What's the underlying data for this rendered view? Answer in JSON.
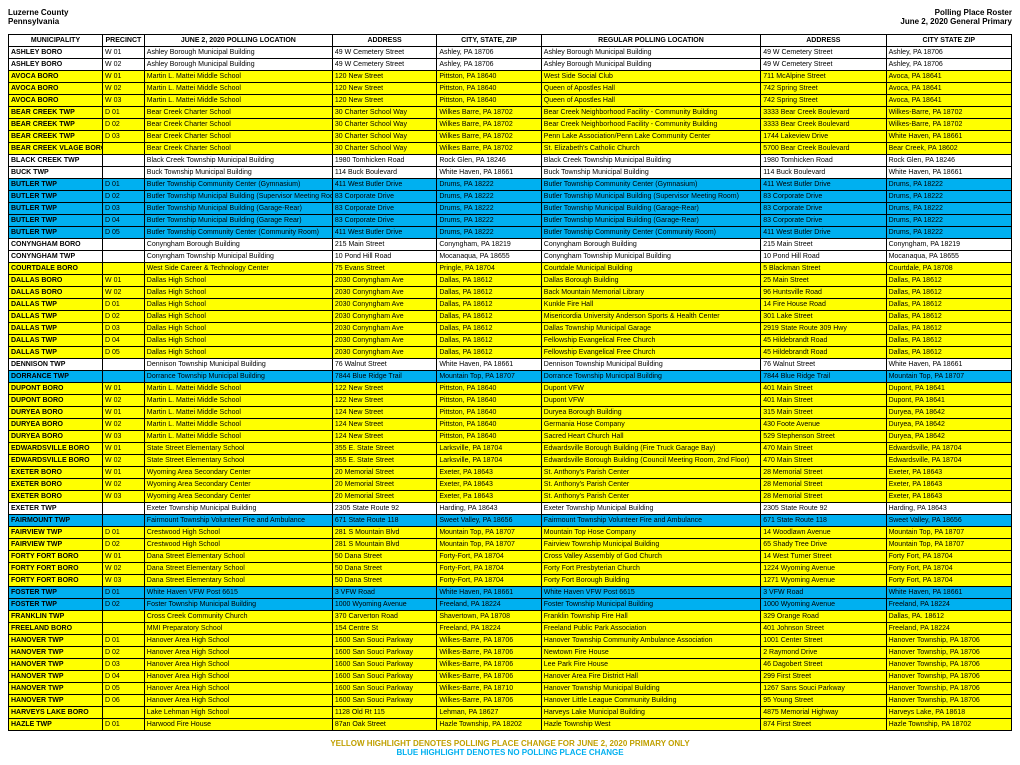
{
  "header": {
    "left_line1": "Luzerne County",
    "left_line2": "Pennsylvania",
    "right_line1": "Polling Place Roster",
    "right_line2": "June 2, 2020 General Primary"
  },
  "columns": [
    "MUNICIPALITY",
    "PRECINCT",
    "JUNE 2, 2020 POLLING LOCATION",
    "ADDRESS",
    "CITY, STATE, ZIP",
    "REGULAR POLLING LOCATION",
    "ADDRESS",
    "CITY STATE ZIP"
  ],
  "rows": [
    {
      "hl": "",
      "c": [
        "ASHLEY BORO",
        "W 01",
        "Ashley Borough Municipal Building",
        "49 W Cemetery Street",
        "Ashley, PA 18706",
        "Ashley Borough Municipal Building",
        "49 W Cemetery Street",
        "Ashley, PA 18706"
      ]
    },
    {
      "hl": "",
      "c": [
        "ASHLEY BORO",
        "W 02",
        "Ashley Borough Municipal Building",
        "49 W Cemetery Street",
        "Ashley, PA 18706",
        "Ashley Borough Municipal Building",
        "49 W Cemetery Street",
        "Ashley, PA 18706"
      ]
    },
    {
      "hl": "yellow",
      "c": [
        "AVOCA BORO",
        "W 01",
        "Martin L. Mattei Middle School",
        "120 New Street",
        "Pittston, PA 18640",
        "West Side Social Club",
        "711 McAlpine Street",
        "Avoca, PA 18641"
      ]
    },
    {
      "hl": "yellow",
      "c": [
        "AVOCA BORO",
        "W 02",
        "Martin L. Mattei Middle School",
        "120 New Street",
        "Pittston, PA 18640",
        "Queen of Apostles Hall",
        "742 Spring Street",
        "Avoca, PA 18641"
      ]
    },
    {
      "hl": "yellow",
      "c": [
        "AVOCA BORO",
        "W 03",
        "Martin L. Mattei Middle School",
        "120 New Street",
        "Pittston, PA 18640",
        "Queen of Apostles Hall",
        "742 Spring Street",
        "Avoca, PA 18641"
      ]
    },
    {
      "hl": "yellow",
      "c": [
        "BEAR CREEK TWP",
        "D 01",
        "Bear Creek Charter School",
        "30 Charter School Way",
        "Wilkes Barre, PA 18702",
        "Bear Creek Neighborhood Facility - Community Building",
        "3333 Bear Creek Boulevard",
        "Wilkes-Barre, PA 18702"
      ]
    },
    {
      "hl": "yellow",
      "c": [
        "BEAR CREEK TWP",
        "D 02",
        "Bear Creek Charter School",
        "30 Charter School Way",
        "Wilkes Barre, PA 18702",
        "Bear Creek Neighborhood Facility - Community Building",
        "3333 Bear Creek Boulevard",
        "Wilkes-Barre, PA 18702"
      ]
    },
    {
      "hl": "yellow",
      "c": [
        "BEAR CREEK TWP",
        "D 03",
        "Bear Creek Charter School",
        "30 Charter School Way",
        "Wilkes Barre, PA 18702",
        "Penn Lake Association/Penn Lake Community Center",
        "1744 Lakeview Drive",
        "White Haven, PA 18661"
      ]
    },
    {
      "hl": "yellow",
      "c": [
        "BEAR CREEK VLAGE BORO",
        "",
        "Bear Creek Charter School",
        "30 Charter School Way",
        "Wilkes Barre, PA 18702",
        "St. Elizabeth's Catholic Church",
        "5700 Bear Creek Boulevard",
        "Bear Creek, PA 18602"
      ]
    },
    {
      "hl": "",
      "c": [
        "BLACK CREEK TWP",
        "",
        "Black Creek Township Municipal Building",
        "1980 Tomhicken Road",
        "Rock Glen, PA  18246",
        "Black Creek Township Municipal Building",
        "1980 Tomhicken Road",
        "Rock Glen, PA  18246"
      ]
    },
    {
      "hl": "",
      "c": [
        "BUCK TWP",
        "",
        "Buck Township Municipal Building",
        "114 Buck Boulevard",
        "White Haven, PA 18661",
        "Buck Township Municipal Building",
        "114 Buck Boulevard",
        "White Haven, PA 18661"
      ]
    },
    {
      "hl": "blue",
      "c": [
        "BUTLER TWP",
        "D 01",
        "Butler Township Community Center (Gymnasium)",
        "411 West Butler Drive",
        "Drums, PA 18222",
        "Butler Township Community Center (Gymnasium)",
        "411 West Butler Drive",
        "Drums, PA 18222"
      ]
    },
    {
      "hl": "blue",
      "c": [
        "BUTLER TWP",
        "D 02",
        "Butler Township Municipal Building (Supervisor Meeting Room)",
        "83 Corporate Drive",
        "Drums, PA 18222",
        "Butler Township Municipal Building (Supervisor Meeting Room)",
        "83 Corporate Drive",
        "Drums, PA 18222"
      ]
    },
    {
      "hl": "blue",
      "c": [
        "BUTLER TWP",
        "D 03",
        "Butler Township Municipal Building (Garage-Rear)",
        "83 Corporate Drive",
        "Drums, PA 18222",
        "Butler Township Municipal Building (Garage-Rear)",
        "83 Corporate Drive",
        "Drums, PA 18222"
      ]
    },
    {
      "hl": "blue",
      "c": [
        "BUTLER TWP",
        "D 04",
        "Butler Township Municipal Building (Garage Rear)",
        "83 Corporate Drive",
        "Drums, PA 18222",
        "Butler Township Municipal Building (Garage-Rear)",
        "83 Corporate Drive",
        "Drums, PA 18222"
      ]
    },
    {
      "hl": "blue",
      "c": [
        "BUTLER TWP",
        "D 05",
        "Butler Township Community Center (Community Room)",
        "411 West Butler Drive",
        "Drums, PA 18222",
        "Butler Township Community Center (Community Room)",
        "411 West Butler Drive",
        "Drums, PA 18222"
      ]
    },
    {
      "hl": "",
      "c": [
        "CONYNGHAM BORO",
        "",
        "Conyngham Borough Building",
        "215 Main Street",
        "Conyngham, PA 18219",
        "Conyngham Borough Building",
        "215 Main Street",
        "Conyngham, PA 18219"
      ]
    },
    {
      "hl": "",
      "c": [
        "CONYNGHAM TWP",
        "",
        "Conyngham Township Municipal Building",
        "10 Pond Hill Road",
        "Mocanaqua, PA 18655",
        "Conyngham Township Municipal Building",
        "10 Pond Hill Road",
        "Mocanaqua, PA 18655"
      ]
    },
    {
      "hl": "yellow",
      "c": [
        "COURTDALE BORO",
        "",
        "West Side Career & Technology Center",
        "75 Evans Street",
        "Pringle, PA 18704",
        "Courtdale Municipal Building",
        "5 Blackman Street",
        "Courtdale, PA 18708"
      ]
    },
    {
      "hl": "yellow",
      "c": [
        "DALLAS BORO",
        "W 01",
        "Dallas High School",
        "2030 Conyngham Ave",
        "Dallas, PA 18612",
        "Dallas Borough Building",
        "25 Main Street",
        "Dallas, PA 18612"
      ]
    },
    {
      "hl": "yellow",
      "c": [
        "DALLAS BORO",
        "W 02",
        "Dallas High School",
        "2030 Conyngham Ave",
        "Dallas, PA 18612",
        "Back Mountain Memorial Library",
        "96 Huntsville Road",
        "Dallas, PA 18612"
      ]
    },
    {
      "hl": "yellow",
      "c": [
        "DALLAS TWP",
        "D 01",
        "Dallas High School",
        "2030 Conyngham Ave",
        "Dallas, PA 18612",
        "Kunkle Fire Hall",
        "14 Fire House Road",
        "Dallas, PA 18612"
      ]
    },
    {
      "hl": "yellow",
      "c": [
        "DALLAS TWP",
        "D 02",
        "Dallas High School",
        "2030 Conyngham Ave",
        "Dallas, PA 18612",
        "Misericordia University Anderson Sports & Health Center",
        "301 Lake Street",
        "Dallas, PA 18612"
      ]
    },
    {
      "hl": "yellow",
      "c": [
        "DALLAS TWP",
        "D 03",
        "Dallas High School",
        "2030 Conyngham Ave",
        "Dallas, PA 18612",
        "Dallas Township Municipal Garage",
        "2919 State Route 309 Hwy",
        "Dallas, PA 18612"
      ]
    },
    {
      "hl": "yellow",
      "c": [
        "DALLAS TWP",
        "D 04",
        "Dallas High School",
        "2030 Conyngham Ave",
        "Dallas, PA 18612",
        "Fellowship Evangelical Free Church",
        "45 Hildebrandt Road",
        "Dallas, PA 18612"
      ]
    },
    {
      "hl": "yellow",
      "c": [
        "DALLAS TWP",
        "D 05",
        "Dallas High School",
        "2030 Conyngham Ave",
        "Dallas, PA 18612",
        "Fellowship Evangelical Free Church",
        "45 Hildebrandt Road",
        "Dallas, PA 18612"
      ]
    },
    {
      "hl": "",
      "c": [
        "DENNISON TWP",
        "",
        "Dennison Township Municipal Building",
        "76 Walnut Street",
        "White Haven, PA 18661",
        "Dennison Township Municipal Building",
        "76 Walnut Street",
        "White Haven, PA 18661"
      ]
    },
    {
      "hl": "blue",
      "c": [
        "DORRANCE TWP",
        "",
        "Dorrance Township Municipal Building",
        "7844 Blue Ridge Trail",
        "Mountain Top, PA 18707",
        "Dorrance Township Municipal Building",
        "7844 Blue Ridge Trail",
        "Mountain Top, PA 18707"
      ]
    },
    {
      "hl": "yellow",
      "c": [
        "DUPONT BORO",
        "W 01",
        "Martin L. Mattei Middle School",
        "122 New Street",
        "Pittston, PA 18640",
        "Dupont VFW",
        "401 Main Street",
        "Dupont, PA 18641"
      ]
    },
    {
      "hl": "yellow",
      "c": [
        "DUPONT BORO",
        "W 02",
        "Martin L. Mattei Middle School",
        "122 New Street",
        "Pittston, PA 18640",
        "Dupont VFW",
        "401 Main Street",
        "Dupont, PA 18641"
      ]
    },
    {
      "hl": "yellow",
      "c": [
        "DURYEA BORO",
        "W 01",
        "Martin L. Mattei Middle School",
        "124 New Street",
        "Pittston, PA 18640",
        "Duryea Borough Building",
        "315 Main Street",
        "Duryea, PA 18642"
      ]
    },
    {
      "hl": "yellow",
      "c": [
        "DURYEA BORO",
        "W 02",
        "Martin L. Mattei Middle School",
        "124 New Street",
        "Pittston, PA 18640",
        "Germania Hose Company",
        "430 Foote Avenue",
        "Duryea, PA 18642"
      ]
    },
    {
      "hl": "yellow",
      "c": [
        "DURYEA BORO",
        "W 03",
        "Martin L. Mattei Middle School",
        "124 New Street",
        "Pittston, PA 18640",
        "Sacred Heart Church Hall",
        "529 Stephenson Street",
        "Duryea, PA 18642"
      ]
    },
    {
      "hl": "yellow",
      "c": [
        "EDWARDSVILLE BORO",
        "W 01",
        "State Street Elementary School",
        "355 E. State Street",
        "Larksville, PA 18704",
        "Edwardsville Borough Building (Fire Truck Garage Bay)",
        "470 Main Street",
        "Edwardsville, PA 18704"
      ]
    },
    {
      "hl": "yellow",
      "c": [
        "EDWARDSVILLE BORO",
        "W 02",
        "State Street Elementary School",
        "355 E. State Street",
        "Larksville, PA 18704",
        "Edwardsville Borough Building (Council Meeting Room, 2nd Floor)",
        "470 Main Street",
        "Edwardsville, PA 18704"
      ]
    },
    {
      "hl": "yellow",
      "c": [
        "EXETER BORO",
        "W 01",
        "Wyoming Area Secondary Center",
        "20 Memorial Street",
        "Exeter, PA 18643",
        "St. Anthony's Parish Center",
        "28 Memorial Street",
        "Exeter, PA 18643"
      ]
    },
    {
      "hl": "yellow",
      "c": [
        "EXETER BORO",
        "W 02",
        "Wyoming Area Secondary Center",
        "20 Memorial Street",
        "Exeter, PA 18643",
        "St. Anthony's Parish Center",
        "28 Memorial Street",
        "Exeter, PA 18643"
      ]
    },
    {
      "hl": "yellow",
      "c": [
        "EXETER BORO",
        "W 03",
        "Wyoming Area Secondary Center",
        "20 Memorial Street",
        "Exeter, Pa 18643",
        "St. Anthony's Parish Center",
        "28 Memorial Street",
        "Exeter, PA 18643"
      ]
    },
    {
      "hl": "",
      "c": [
        "EXETER TWP",
        "",
        "Exeter Township Municipal Building",
        "2305 State Route 92",
        "Harding, PA 18643",
        "Exeter Township Municipal Building",
        "2305 State Route 92",
        "Harding, PA 18643"
      ]
    },
    {
      "hl": "blue",
      "c": [
        "FAIRMOUNT TWP",
        "",
        "Fairmount Township Volunteer Fire and Ambulance",
        "671 State Route 118",
        "Sweet Valley, PA 18656",
        "Fairmount Township Volunteer Fire and Ambulance",
        "671 State Route 118",
        "Sweet Valley, PA 18656"
      ]
    },
    {
      "hl": "yellow",
      "c": [
        "FAIRVIEW TWP",
        "D 01",
        "Crestwood High School",
        "281 S Mountain Blvd",
        "Mountain Top, PA 18707",
        "Mountain Top Hose Company",
        "14 Woodlawn Avenue",
        "Mountain Top, PA 18707"
      ]
    },
    {
      "hl": "yellow",
      "c": [
        "FAIRVIEW TWP",
        "D 02",
        "Crestwood High School",
        "281 S Mountain Blvd",
        "Mountain Top, PA 18707",
        "Fairview Township Municipal Building",
        "65 Shady Tree Drive",
        "Mountain Top, PA 18707"
      ]
    },
    {
      "hl": "yellow",
      "c": [
        "FORTY FORT BORO",
        "W 01",
        "Dana Street Elementary School",
        "50 Dana Street",
        "Forty-Fort, PA 18704",
        "Cross Valley Assembly of God Church",
        "14 West Turner Street",
        "Forty Fort, PA 18704"
      ]
    },
    {
      "hl": "yellow",
      "c": [
        "FORTY FORT BORO",
        "W 02",
        "Dana Street Elementary School",
        "50 Dana Street",
        "Forty-Fort, PA 18704",
        "Forty Fort Presbyterian Church",
        "1224 Wyoming Avenue",
        "Forty Fort, PA 18704"
      ]
    },
    {
      "hl": "yellow",
      "c": [
        "FORTY FORT BORO",
        "W 03",
        "Dana Street Elementary School",
        "50 Dana Street",
        "Forty-Fort, PA 18704",
        "Forty Fort Borough Building",
        "1271 Wyoming Avenue",
        "Forty Fort, PA 18704"
      ]
    },
    {
      "hl": "blue",
      "c": [
        "FOSTER TWP",
        "D 01",
        "White Haven VFW Post 6615",
        "3 VFW Road",
        "White Haven, PA 18661",
        "White Haven VFW Post 6615",
        "3 VFW Road",
        "White Haven, PA 18661"
      ]
    },
    {
      "hl": "blue",
      "c": [
        "FOSTER TWP",
        "D 02",
        "Foster Township Municipal Building",
        "1000 Wyoming Avenue",
        "Freeland, PA 18224",
        "Foster Township Municipal Building",
        "1000 Wyoming Avenue",
        "Freeland, PA 18224"
      ]
    },
    {
      "hl": "yellow",
      "c": [
        "FRANKLIN TWP",
        "",
        "Cross Creek Community Church",
        "370 Carverton Road",
        "Shavertown, PA 18708",
        "Franklin Township Fire Hall",
        "329 Orange Road",
        "Dallas, PA. 18612"
      ]
    },
    {
      "hl": "yellow",
      "c": [
        "FREELAND BORO",
        "",
        "MMI Preparatory School",
        "154 Centre St",
        "Freeland, PA 18224",
        "Freeland Public Park Association",
        "401 Johnson Street",
        "Freeland, PA 18224"
      ]
    },
    {
      "hl": "yellow",
      "c": [
        "HANOVER TWP",
        "D 01",
        "Hanover Area High School",
        "1600 San Souci Parkway",
        "Wilkes-Barre, PA 18706",
        "Hanover Township Community Ambulance Association",
        "1001 Center Street",
        "Hanover Township, PA 18706"
      ]
    },
    {
      "hl": "yellow",
      "c": [
        "HANOVER TWP",
        "D 02",
        "Hanover Area High School",
        "1600 San Souci Parkway",
        "Wilkes-Barre, PA 18706",
        "Newtown Fire House",
        "2 Raymond Drive",
        "Hanover Township, PA 18706"
      ]
    },
    {
      "hl": "yellow",
      "c": [
        "HANOVER TWP",
        "D 03",
        "Hanover Area High School",
        "1600 San Souci Parkway",
        "Wilkes-Barre, PA 18706",
        "Lee Park Fire House",
        "46 Dagobert Street",
        "Hanover Township, PA 18706"
      ]
    },
    {
      "hl": "yellow",
      "c": [
        "HANOVER TWP",
        "D 04",
        "Hanover Area High School",
        "1600 San Souci Parkway",
        "Wilkes-Barre, PA 18706",
        "Hanover Area Fire District Hall",
        "299 First Street",
        "Hanover Township, PA 18706"
      ]
    },
    {
      "hl": "yellow",
      "c": [
        "HANOVER TWP",
        "D 05",
        "Hanover Area High School",
        "1600 San Souci Parkway",
        "Wilkes-Barre, PA 18710",
        "Hanover Township Municipal Building",
        "1267 Sans Souci Parkway",
        "Hanover Township, PA 18706"
      ]
    },
    {
      "hl": "yellow",
      "c": [
        "HANOVER TWP",
        "D 06",
        "Hanover Area High School",
        "1600 San Souci Parkway",
        "Wilkes-Barre, PA 18706",
        "Hanover Little League Community Building",
        "95 Young Street",
        "Hanover Township, PA 18706"
      ]
    },
    {
      "hl": "yellow",
      "c": [
        "HARVEYS LAKE BORO",
        "",
        "Lake Lehman High School",
        "1128 Old Rt 115",
        "Lehman, PA 18627",
        "Harveys Lake Municipal Building",
        "4875 Memorial Highway",
        "Harveys Lake, PA 18618"
      ]
    },
    {
      "hl": "yellow",
      "c": [
        "HAZLE TWP",
        "D 01",
        "Harwood Fire House",
        "87an Oak Street",
        "Hazle Township, PA 18202",
        "Hazle Township West",
        "874 First Street",
        "Hazle Township, PA 18702"
      ]
    }
  ],
  "footer": {
    "line1": "YELLOW HIGHLIGHT DENOTES POLLING PLACE CHANGE FOR JUNE 2, 2020 PRIMARY ONLY",
    "line2": "BLUE HIGHLIGHT DENOTES NO POLLING PLACE CHANGE"
  }
}
